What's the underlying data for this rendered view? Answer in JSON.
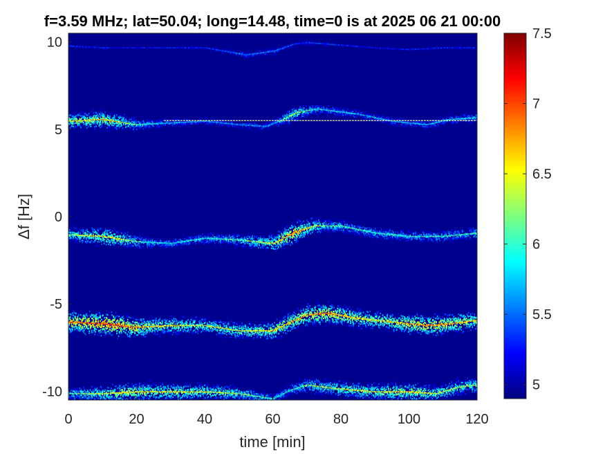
{
  "chart_data": {
    "type": "heatmap",
    "title": "f=3.59 MHz;  lat=50.04; long=14.48, time=0 is at 2025 06 21 00:00",
    "xlabel": "time [min]",
    "ylabel": "Δf [Hz]",
    "xlim": [
      0,
      120
    ],
    "ylim": [
      -10.5,
      10.5
    ],
    "x_ticks": [
      "0",
      "20",
      "40",
      "60",
      "80",
      "100",
      "120"
    ],
    "y_ticks": [
      "-10",
      "-5",
      "0",
      "5",
      "10"
    ],
    "colorbar": {
      "range": [
        4.9,
        7.5
      ],
      "ticks": [
        "5",
        "5.5",
        "6",
        "6.5",
        "7",
        "7.5"
      ],
      "colormap": "jet"
    },
    "background_color": "#00008f",
    "reference_line": {
      "y": 5.5,
      "x_range": [
        28,
        120
      ]
    },
    "bands": [
      {
        "name": "band-1",
        "track": [
          [
            0,
            5.5
          ],
          [
            10,
            5.6
          ],
          [
            20,
            5.3
          ],
          [
            30,
            5.4
          ],
          [
            40,
            5.5
          ],
          [
            50,
            5.3
          ],
          [
            58,
            5.2
          ],
          [
            63,
            5.6
          ],
          [
            67,
            6.0
          ],
          [
            73,
            6.2
          ],
          [
            85,
            5.9
          ],
          [
            95,
            5.5
          ],
          [
            105,
            5.3
          ],
          [
            112,
            5.6
          ],
          [
            120,
            5.7
          ]
        ],
        "intensity": [
          [
            0,
            6.5
          ],
          [
            12,
            6.6
          ],
          [
            25,
            5.8
          ],
          [
            45,
            5.6
          ],
          [
            60,
            5.7
          ],
          [
            66,
            6.4
          ],
          [
            72,
            5.9
          ],
          [
            90,
            5.7
          ],
          [
            110,
            5.8
          ],
          [
            120,
            5.9
          ]
        ]
      },
      {
        "name": "band-2",
        "track": [
          [
            0,
            -1.0
          ],
          [
            10,
            -1.1
          ],
          [
            20,
            -1.4
          ],
          [
            30,
            -1.5
          ],
          [
            40,
            -1.2
          ],
          [
            50,
            -1.3
          ],
          [
            60,
            -1.5
          ],
          [
            66,
            -0.9
          ],
          [
            72,
            -0.5
          ],
          [
            80,
            -0.5
          ],
          [
            90,
            -0.9
          ],
          [
            100,
            -1.1
          ],
          [
            110,
            -1.1
          ],
          [
            120,
            -0.9
          ]
        ],
        "intensity": [
          [
            0,
            6.3
          ],
          [
            12,
            6.6
          ],
          [
            25,
            5.9
          ],
          [
            45,
            6.0
          ],
          [
            58,
            6.4
          ],
          [
            66,
            6.9
          ],
          [
            75,
            6.2
          ],
          [
            90,
            6.0
          ],
          [
            110,
            6.0
          ],
          [
            120,
            6.1
          ]
        ]
      },
      {
        "name": "band-3",
        "track": [
          [
            0,
            -6.0
          ],
          [
            10,
            -6.1
          ],
          [
            20,
            -6.3
          ],
          [
            30,
            -6.2
          ],
          [
            40,
            -6.2
          ],
          [
            50,
            -6.5
          ],
          [
            60,
            -6.5
          ],
          [
            65,
            -6.0
          ],
          [
            70,
            -5.6
          ],
          [
            76,
            -5.5
          ],
          [
            85,
            -5.8
          ],
          [
            95,
            -6.0
          ],
          [
            105,
            -6.2
          ],
          [
            112,
            -6.1
          ],
          [
            120,
            -5.9
          ]
        ],
        "intensity": [
          [
            0,
            6.9
          ],
          [
            12,
            7.1
          ],
          [
            25,
            6.6
          ],
          [
            40,
            6.4
          ],
          [
            55,
            6.5
          ],
          [
            65,
            6.7
          ],
          [
            75,
            6.9
          ],
          [
            90,
            6.5
          ],
          [
            105,
            6.9
          ],
          [
            120,
            6.6
          ]
        ]
      },
      {
        "name": "band-4",
        "track": [
          [
            0,
            -10.1
          ],
          [
            10,
            -10.1
          ],
          [
            20,
            -10.0
          ],
          [
            30,
            -10.0
          ],
          [
            40,
            -10.0
          ],
          [
            50,
            -10.1
          ],
          [
            60,
            -10.4
          ],
          [
            65,
            -9.9
          ],
          [
            70,
            -9.6
          ],
          [
            78,
            -9.8
          ],
          [
            90,
            -10.0
          ],
          [
            100,
            -10.0
          ],
          [
            108,
            -10.1
          ],
          [
            115,
            -9.7
          ],
          [
            120,
            -9.6
          ]
        ],
        "intensity": [
          [
            0,
            6.1
          ],
          [
            15,
            6.6
          ],
          [
            35,
            6.5
          ],
          [
            50,
            6.3
          ],
          [
            62,
            5.9
          ],
          [
            72,
            6.3
          ],
          [
            90,
            6.5
          ],
          [
            100,
            6.6
          ],
          [
            110,
            6.4
          ],
          [
            120,
            6.3
          ]
        ]
      },
      {
        "name": "band-5",
        "track": [
          [
            0,
            9.8
          ],
          [
            10,
            9.7
          ],
          [
            20,
            9.7
          ],
          [
            30,
            9.7
          ],
          [
            40,
            9.7
          ],
          [
            52,
            9.3
          ],
          [
            60,
            9.5
          ],
          [
            66,
            9.9
          ],
          [
            70,
            10.0
          ],
          [
            90,
            9.7
          ],
          [
            100,
            9.6
          ],
          [
            110,
            9.7
          ],
          [
            120,
            9.7
          ]
        ],
        "intensity": [
          [
            0,
            5.3
          ],
          [
            20,
            5.2
          ],
          [
            40,
            5.3
          ],
          [
            52,
            5.6
          ],
          [
            60,
            5.6
          ],
          [
            68,
            5.4
          ],
          [
            90,
            5.2
          ],
          [
            110,
            5.3
          ],
          [
            120,
            5.3
          ]
        ]
      }
    ]
  }
}
